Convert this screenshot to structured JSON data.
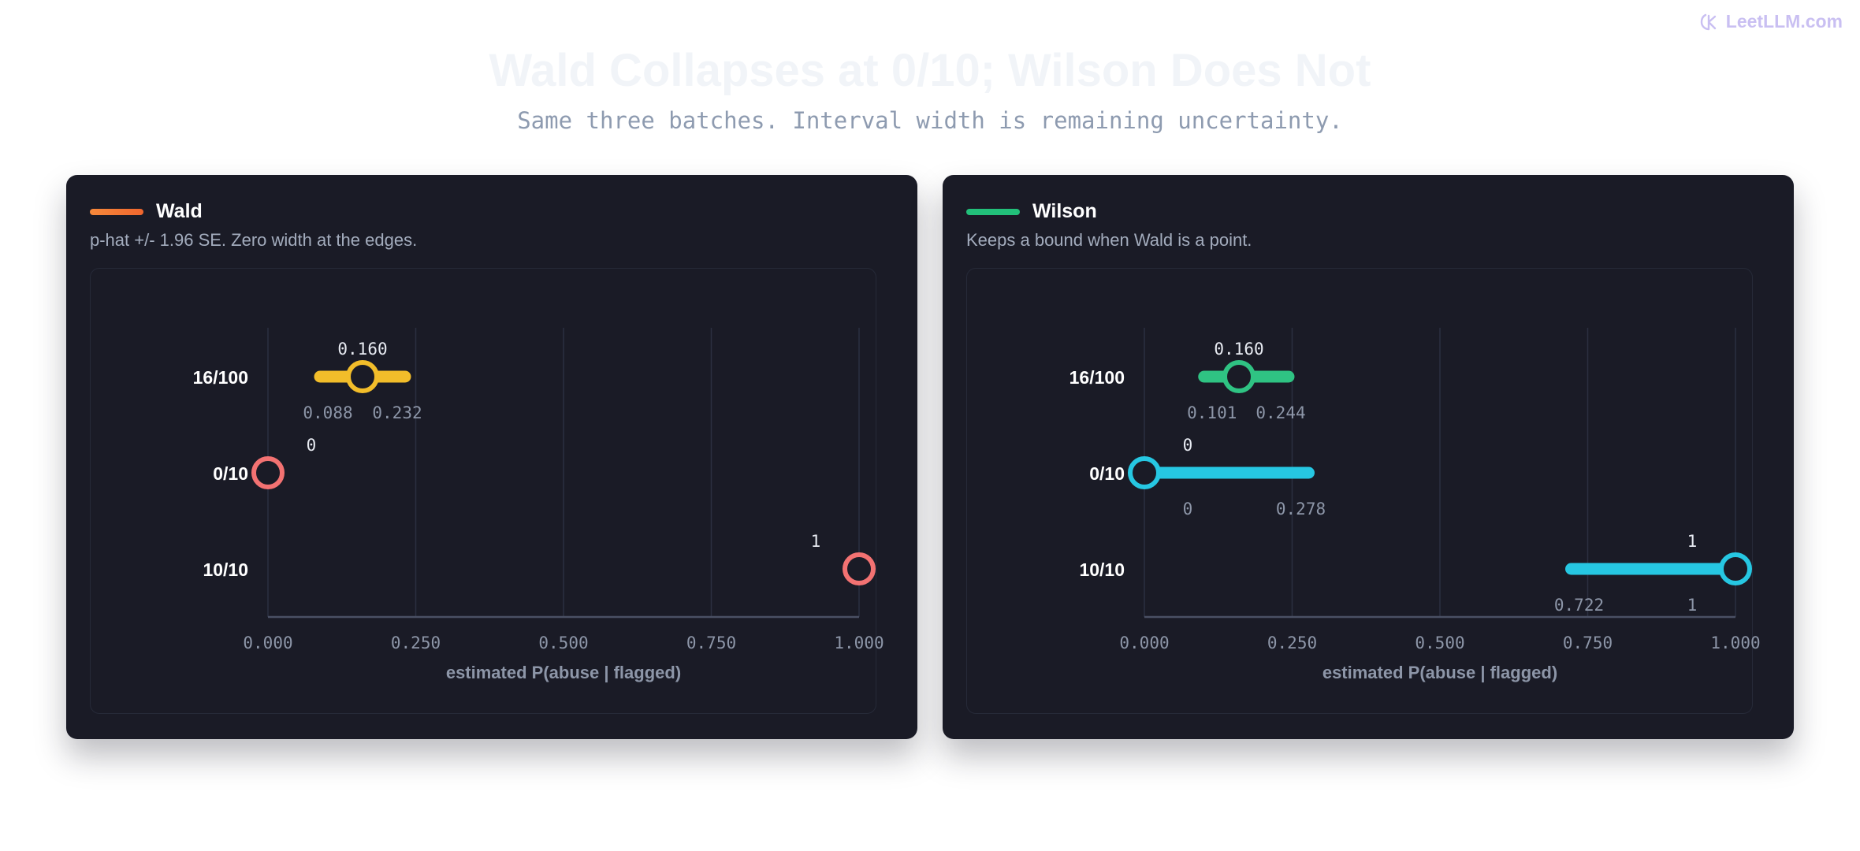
{
  "watermark": {
    "text": "LeetLLM.com",
    "icon": "brand-icon"
  },
  "header": {
    "title": "Wald Collapses at 0/10; Wilson Does Not",
    "subtitle": "Same three batches. Interval width is remaining uncertainty."
  },
  "colors": {
    "wald_swatch_start": "#f6893b",
    "wald_swatch_end": "#f0662e",
    "wilson_swatch": "#22c07a",
    "yellow": "#f2bd2a",
    "green": "#2fc383",
    "cyan": "#26c7e2",
    "salmon": "#f37272"
  },
  "chart_data": [
    {
      "type": "interval",
      "name": "Wald",
      "description": "p-hat +/- 1.96 SE. Zero width at the edges.",
      "xlabel": "estimated P(abuse | flagged)",
      "xlim": [
        0,
        1
      ],
      "xticks": [
        "0.000",
        "0.250",
        "0.500",
        "0.750",
        "1.000"
      ],
      "grid": true,
      "rows": [
        {
          "label": "16/100",
          "estimate": 0.16,
          "lower": 0.088,
          "upper": 0.232,
          "estimate_label": "0.160",
          "lower_label": "0.088",
          "upper_label": "0.232",
          "color": "#f2bd2a"
        },
        {
          "label": "0/10",
          "estimate": 0,
          "lower": 0,
          "upper": 0,
          "estimate_label": "0",
          "lower_label": "",
          "upper_label": "",
          "color": "#f37272"
        },
        {
          "label": "10/10",
          "estimate": 1,
          "lower": 1,
          "upper": 1,
          "estimate_label": "1",
          "lower_label": "",
          "upper_label": "",
          "color": "#f37272"
        }
      ]
    },
    {
      "type": "interval",
      "name": "Wilson",
      "description": "Keeps a bound when Wald is a point.",
      "xlabel": "estimated P(abuse | flagged)",
      "xlim": [
        0,
        1
      ],
      "xticks": [
        "0.000",
        "0.250",
        "0.500",
        "0.750",
        "1.000"
      ],
      "grid": true,
      "rows": [
        {
          "label": "16/100",
          "estimate": 0.16,
          "lower": 0.101,
          "upper": 0.244,
          "estimate_label": "0.160",
          "lower_label": "0.101",
          "upper_label": "0.244",
          "color": "#2fc383"
        },
        {
          "label": "0/10",
          "estimate": 0,
          "lower": 0,
          "upper": 0.278,
          "estimate_label": "0",
          "lower_label": "0",
          "upper_label": "0.278",
          "color": "#26c7e2"
        },
        {
          "label": "10/10",
          "estimate": 1,
          "lower": 0.722,
          "upper": 1,
          "estimate_label": "1",
          "lower_label": "0.722",
          "upper_label": "1",
          "color": "#26c7e2"
        }
      ]
    }
  ]
}
